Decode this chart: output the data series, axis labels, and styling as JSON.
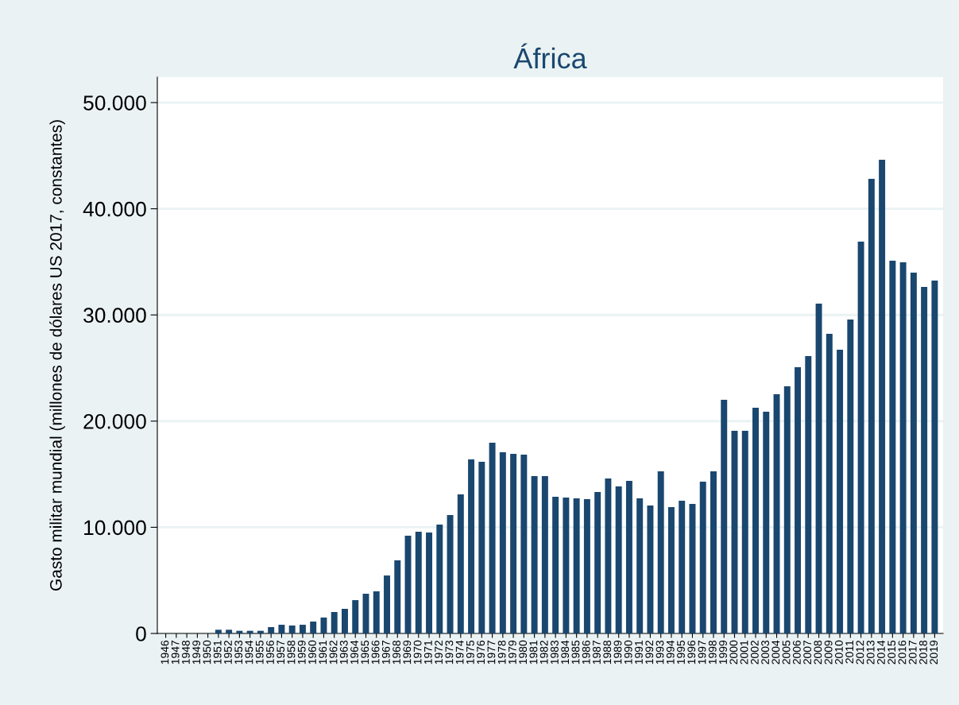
{
  "chart_data": {
    "type": "bar",
    "title": "África",
    "ylabel": "Gasto militar mundial (millones de dólares US 2017, constantes)",
    "categories": [
      "1946",
      "1947",
      "1948",
      "1949",
      "1950",
      "1951",
      "1952",
      "1953",
      "1954",
      "1955",
      "1956",
      "1957",
      "1958",
      "1959",
      "1960",
      "1961",
      "1962",
      "1963",
      "1964",
      "1965",
      "1966",
      "1967",
      "1968",
      "1969",
      "1970",
      "1971",
      "1972",
      "1973",
      "1974",
      "1975",
      "1976",
      "1977",
      "1978",
      "1979",
      "1980",
      "1981",
      "1982",
      "1983",
      "1984",
      "1985",
      "1986",
      "1987",
      "1988",
      "1989",
      "1990",
      "1991",
      "1992",
      "1993",
      "1994",
      "1995",
      "1996",
      "1997",
      "1998",
      "1999",
      "2000",
      "2001",
      "2002",
      "2003",
      "2004",
      "2005",
      "2006",
      "2007",
      "2008",
      "2009",
      "2010",
      "2011",
      "2012",
      "2013",
      "2014",
      "2015",
      "2016",
      "2017",
      "2018",
      "2019"
    ],
    "values": [
      null,
      null,
      null,
      null,
      null,
      350,
      350,
      250,
      250,
      250,
      600,
      820,
      750,
      820,
      1120,
      1500,
      2020,
      2320,
      3140,
      3740,
      3970,
      5460,
      6890,
      9200,
      9580,
      9510,
      10250,
      11150,
      13100,
      16390,
      16170,
      17960,
      17070,
      16920,
      16840,
      14820,
      14820,
      12870,
      12800,
      12720,
      12650,
      13320,
      14600,
      13850,
      14370,
      12720,
      12050,
      15270,
      11900,
      12500,
      12200,
      14300,
      15270,
      22000,
      19090,
      19090,
      21260,
      20880,
      22530,
      23280,
      25070,
      26120,
      31060,
      28220,
      26720,
      29570,
      36900,
      42810,
      44610,
      35100,
      34960,
      33980,
      32630,
      33230
    ],
    "color": "#1a476f",
    "ylim": [
      0,
      52400
    ],
    "yticks": [
      {
        "value": 0,
        "label": "0"
      },
      {
        "value": 10000,
        "label": "10.000"
      },
      {
        "value": 20000,
        "label": "20.000"
      },
      {
        "value": 30000,
        "label": "30.000"
      },
      {
        "value": 40000,
        "label": "40.000"
      },
      {
        "value": 50000,
        "label": "50.000"
      }
    ],
    "grid": "y",
    "legend": false
  }
}
